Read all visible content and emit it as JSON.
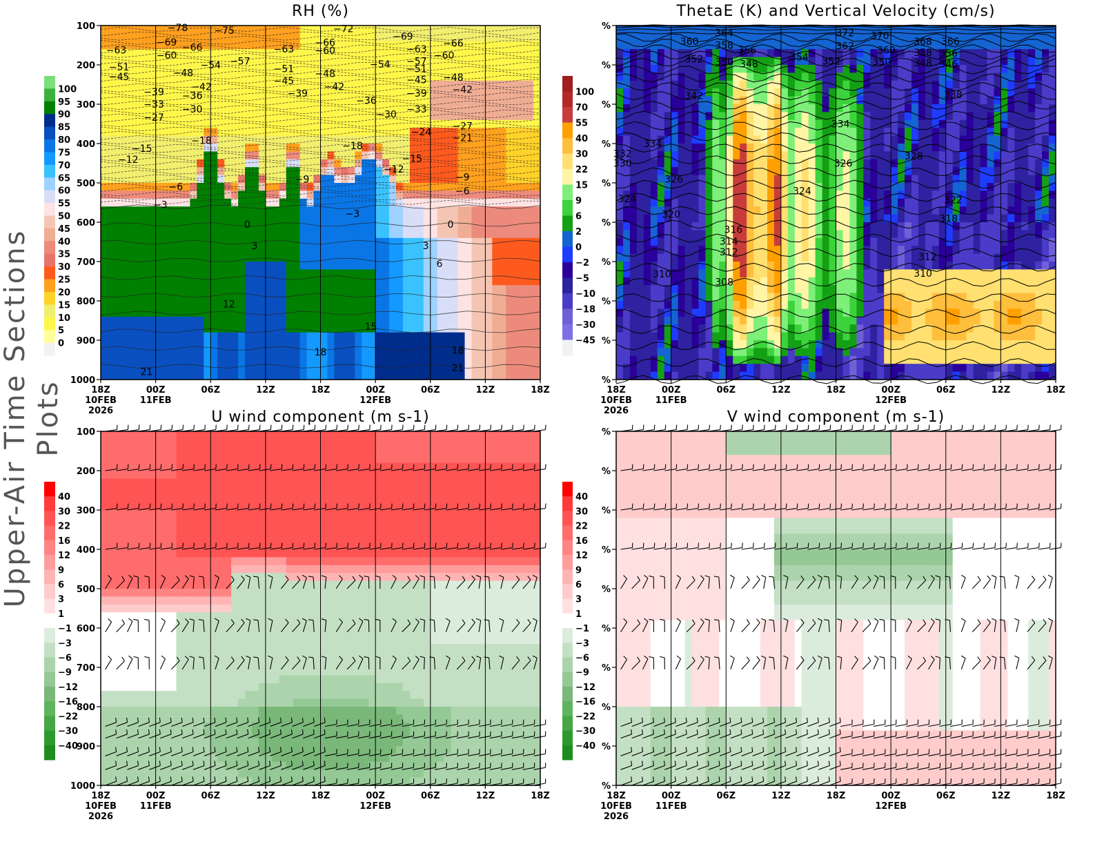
{
  "page_title": "Upper-Air Time Sections Plots",
  "chart_data": [
    {
      "type": "heatmap",
      "title": "RH (%)",
      "xticks": [
        "18Z",
        "00Z",
        "06Z",
        "12Z",
        "18Z",
        "00Z",
        "06Z",
        "12Z",
        "18Z"
      ],
      "xdates": {
        "0": [
          "10FEB",
          "2026"
        ],
        "1": [
          "11FEB"
        ],
        "5": [
          "12FEB"
        ]
      },
      "xrange_hours": [
        0,
        48
      ],
      "yticks": [
        "100",
        "200",
        "300",
        "400",
        "500",
        "600",
        "700",
        "800",
        "900",
        "1000"
      ],
      "ylim": [
        100,
        1000
      ],
      "colorbar": {
        "levels": [
          0,
          5,
          10,
          15,
          20,
          25,
          30,
          35,
          40,
          45,
          50,
          55,
          60,
          65,
          70,
          75,
          80,
          85,
          90,
          95,
          100
        ],
        "colors": [
          "#f2f2f2",
          "#ffff99",
          "#fff64a",
          "#f2ee6e",
          "#ffd22a",
          "#ffa01e",
          "#ff5a1e",
          "#e8736a",
          "#ec8b7d",
          "#efad94",
          "#f5c5b3",
          "#fde3e4",
          "#d9def8",
          "#9ed3ff",
          "#3ac2ff",
          "#1499ff",
          "#0a76e6",
          "#0a4fbf",
          "#002c8c",
          "#008000",
          "#3cb03c",
          "#7ae07a"
        ]
      },
      "contour_labels": [
        {
          "v": "-78",
          "t": 8.4,
          "p": 105
        },
        {
          "v": "-75",
          "t": 13.5,
          "p": 112
        },
        {
          "v": "-72",
          "t": 26.5,
          "p": 108
        },
        {
          "v": "-69",
          "t": 33,
          "p": 127
        },
        {
          "v": "-66",
          "t": 38.5,
          "p": 145
        },
        {
          "v": "-63",
          "t": 1.7,
          "p": 162
        },
        {
          "v": "-69",
          "t": 7.2,
          "p": 142
        },
        {
          "v": "-66",
          "t": 10,
          "p": 155
        },
        {
          "v": "-60",
          "t": 7.2,
          "p": 175
        },
        {
          "v": "-63",
          "t": 20,
          "p": 160
        },
        {
          "v": "-66",
          "t": 24.5,
          "p": 143
        },
        {
          "v": "-60",
          "t": 24.5,
          "p": 163
        },
        {
          "v": "-63",
          "t": 34.5,
          "p": 160
        },
        {
          "v": "-60",
          "t": 37.5,
          "p": 175
        },
        {
          "v": "-57",
          "t": 15.2,
          "p": 190
        },
        {
          "v": "-54",
          "t": 12,
          "p": 200
        },
        {
          "v": "-54",
          "t": 30.5,
          "p": 198
        },
        {
          "v": "-57",
          "t": 34.5,
          "p": 190
        },
        {
          "v": "-51",
          "t": 2,
          "p": 205
        },
        {
          "v": "-45",
          "t": 2,
          "p": 230
        },
        {
          "v": "-48",
          "t": 9,
          "p": 220
        },
        {
          "v": "-51",
          "t": 20,
          "p": 210
        },
        {
          "v": "-48",
          "t": 24.5,
          "p": 222
        },
        {
          "v": "-51",
          "t": 34.5,
          "p": 210
        },
        {
          "v": "-48",
          "t": 38.5,
          "p": 232
        },
        {
          "v": "-45",
          "t": 20,
          "p": 240
        },
        {
          "v": "-42",
          "t": 11,
          "p": 255
        },
        {
          "v": "-42",
          "t": 25.5,
          "p": 255
        },
        {
          "v": "-45",
          "t": 34.5,
          "p": 238
        },
        {
          "v": "-42",
          "t": 39.5,
          "p": 262
        },
        {
          "v": "-39",
          "t": 5.8,
          "p": 268
        },
        {
          "v": "-36",
          "t": 10,
          "p": 278
        },
        {
          "v": "-39",
          "t": 21.5,
          "p": 272
        },
        {
          "v": "-36",
          "t": 29,
          "p": 290
        },
        {
          "v": "-39",
          "t": 34.5,
          "p": 272
        },
        {
          "v": "-33",
          "t": 5.8,
          "p": 300
        },
        {
          "v": "-30",
          "t": 10,
          "p": 312
        },
        {
          "v": "-30",
          "t": 31.2,
          "p": 325
        },
        {
          "v": "-33",
          "t": 34.5,
          "p": 312
        },
        {
          "v": "-27",
          "t": 5.8,
          "p": 333
        },
        {
          "v": "-24",
          "t": 35,
          "p": 370
        },
        {
          "v": "-27",
          "t": 39.5,
          "p": 355
        },
        {
          "v": "-21",
          "t": 39.5,
          "p": 385
        },
        {
          "v": "-18",
          "t": 11,
          "p": 392
        },
        {
          "v": "-18",
          "t": 27.5,
          "p": 405
        },
        {
          "v": "-15",
          "t": 4.5,
          "p": 412
        },
        {
          "v": "-12",
          "t": 3,
          "p": 440
        },
        {
          "v": "-15",
          "t": 34,
          "p": 438
        },
        {
          "v": "-12",
          "t": 32,
          "p": 465
        },
        {
          "v": "-9",
          "t": 22,
          "p": 490
        },
        {
          "v": "-9",
          "t": 39.5,
          "p": 485
        },
        {
          "v": "-6",
          "t": 8.2,
          "p": 510
        },
        {
          "v": "-6",
          "t": 39.5,
          "p": 520
        },
        {
          "v": "-3",
          "t": 6.5,
          "p": 555
        },
        {
          "v": "-3",
          "t": 27.5,
          "p": 578
        },
        {
          "v": "0",
          "t": 16,
          "p": 605
        },
        {
          "v": "0",
          "t": 38.2,
          "p": 605
        },
        {
          "v": "3",
          "t": 16.8,
          "p": 660
        },
        {
          "v": "3",
          "t": 35.5,
          "p": 660
        },
        {
          "v": "6",
          "t": 37,
          "p": 705
        },
        {
          "v": "12",
          "t": 14,
          "p": 808
        },
        {
          "v": "15",
          "t": 29.5,
          "p": 865
        },
        {
          "v": "18",
          "t": 24,
          "p": 930
        },
        {
          "v": "18",
          "t": 39,
          "p": 925
        },
        {
          "v": "21",
          "t": 5,
          "p": 980
        },
        {
          "v": "21",
          "t": 39,
          "p": 970
        }
      ]
    },
    {
      "type": "heatmap",
      "title": "ThetaE (K) and Vertical Velocity (cm/s)",
      "xticks": [
        "18Z",
        "00Z",
        "06Z",
        "12Z",
        "18Z",
        "00Z",
        "06Z",
        "12Z",
        "18Z"
      ],
      "xdates": {
        "0": [
          "10FEB",
          "2026"
        ],
        "1": [
          "11FEB"
        ],
        "5": [
          "12FEB"
        ]
      },
      "xrange_hours": [
        0,
        48
      ],
      "yticks": [
        "%",
        "%",
        "%",
        "%",
        "%",
        "%",
        "%",
        "%",
        "%",
        "%"
      ],
      "ylim": [
        100,
        1000
      ],
      "colorbar": {
        "levels": [
          -45,
          -30,
          -18,
          -10,
          -5,
          -2,
          0,
          2,
          6,
          9,
          15,
          22,
          30,
          40,
          55,
          70,
          100
        ],
        "colors": [
          "#f2f2f2",
          "#7e70e6",
          "#7060d8",
          "#4a3cc8",
          "#2e22a0",
          "#2a009a",
          "#1e3cff",
          "#1464d2",
          "#14a014",
          "#3cd23c",
          "#7ef07a",
          "#fff5a5",
          "#ffe070",
          "#ffbe3c",
          "#ffa000",
          "#c83c3c",
          "#b42828",
          "#a01e1e"
        ]
      },
      "contour_labels": [
        {
          "v": "360",
          "t": 8,
          "p": 140
        },
        {
          "v": "364",
          "t": 11.8,
          "p": 118
        },
        {
          "v": "358",
          "t": 11.8,
          "p": 150
        },
        {
          "v": "356",
          "t": 14.3,
          "p": 162
        },
        {
          "v": "352",
          "t": 8.5,
          "p": 185
        },
        {
          "v": "350",
          "t": 11.8,
          "p": 192
        },
        {
          "v": "348",
          "t": 14.5,
          "p": 197
        },
        {
          "v": "354",
          "t": 20,
          "p": 180
        },
        {
          "v": "352",
          "t": 23.5,
          "p": 190
        },
        {
          "v": "372",
          "t": 25,
          "p": 118
        },
        {
          "v": "370",
          "t": 28.8,
          "p": 125
        },
        {
          "v": "362",
          "t": 25,
          "p": 152
        },
        {
          "v": "360",
          "t": 29.5,
          "p": 162
        },
        {
          "v": "350",
          "t": 29,
          "p": 192
        },
        {
          "v": "368",
          "t": 33.5,
          "p": 140
        },
        {
          "v": "366",
          "t": 36.5,
          "p": 140
        },
        {
          "v": "358",
          "t": 33.5,
          "p": 168
        },
        {
          "v": "356",
          "t": 36.3,
          "p": 170
        },
        {
          "v": "348",
          "t": 33.5,
          "p": 195
        },
        {
          "v": "346",
          "t": 36.3,
          "p": 197
        },
        {
          "v": "342",
          "t": 8.5,
          "p": 278
        },
        {
          "v": "338",
          "t": 36.8,
          "p": 275
        },
        {
          "v": "334",
          "t": 24.5,
          "p": 350
        },
        {
          "v": "334",
          "t": 4,
          "p": 400
        },
        {
          "v": "332",
          "t": 0.7,
          "p": 425
        },
        {
          "v": "330",
          "t": 0.7,
          "p": 450
        },
        {
          "v": "328",
          "t": 32.5,
          "p": 432
        },
        {
          "v": "326",
          "t": 6.3,
          "p": 490
        },
        {
          "v": "326",
          "t": 24.8,
          "p": 450
        },
        {
          "v": "324",
          "t": 20.3,
          "p": 520
        },
        {
          "v": "324",
          "t": 1.2,
          "p": 540
        },
        {
          "v": "322",
          "t": 36.8,
          "p": 543
        },
        {
          "v": "320",
          "t": 6,
          "p": 580
        },
        {
          "v": "318",
          "t": 36.3,
          "p": 590
        },
        {
          "v": "316",
          "t": 12.8,
          "p": 618
        },
        {
          "v": "314",
          "t": 12.3,
          "p": 648
        },
        {
          "v": "312",
          "t": 12.3,
          "p": 675
        },
        {
          "v": "312",
          "t": 34,
          "p": 688
        },
        {
          "v": "310",
          "t": 5,
          "p": 732
        },
        {
          "v": "310",
          "t": 33.5,
          "p": 730
        },
        {
          "v": "308",
          "t": 11.8,
          "p": 752
        }
      ]
    },
    {
      "type": "heatmap",
      "title": "U wind component (m s-1)",
      "xticks": [
        "18Z",
        "00Z",
        "06Z",
        "12Z",
        "18Z",
        "00Z",
        "06Z",
        "12Z",
        "18Z"
      ],
      "xdates": {
        "0": [
          "10FEB",
          "2026"
        ],
        "1": [
          "11FEB"
        ],
        "5": [
          "12FEB"
        ]
      },
      "xrange_hours": [
        0,
        48
      ],
      "yticks": [
        "100",
        "200",
        "300",
        "400",
        "500",
        "600",
        "700",
        "800",
        "900",
        "1000"
      ],
      "ylim": [
        100,
        1000
      ],
      "colorbar": {
        "levels": [
          -40,
          -30,
          -22,
          -16,
          -12,
          -9,
          -6,
          -3,
          -1,
          1,
          3,
          6,
          9,
          12,
          16,
          22,
          30,
          40
        ],
        "colors": [
          "#1e8c1e",
          "#2e9a2e",
          "#46a646",
          "#5fb45f",
          "#7ab87a",
          "#94c894",
          "#acd4ac",
          "#c4e0c4",
          "#dcecdc",
          "#ffffff",
          "#ffe0e0",
          "#ffcccc",
          "#ffb4b4",
          "#ff9c9c",
          "#ff8484",
          "#ff6c6c",
          "#ff5454",
          "#ff3a3a",
          "#ff0000"
        ]
      },
      "contour_labels": []
    },
    {
      "type": "heatmap",
      "title": "V wind component (m s-1)",
      "xticks": [
        "18Z",
        "00Z",
        "06Z",
        "12Z",
        "18Z",
        "00Z",
        "06Z",
        "12Z",
        "18Z"
      ],
      "xdates": {
        "0": [
          "10FEB",
          "2026"
        ],
        "1": [
          "11FEB"
        ],
        "5": [
          "12FEB"
        ]
      },
      "xrange_hours": [
        0,
        48
      ],
      "yticks": [
        "%",
        "%",
        "%",
        "%",
        "%",
        "%",
        "%",
        "%",
        "%",
        "%"
      ],
      "ylim": [
        100,
        1000
      ],
      "colorbar": {
        "levels": [
          -40,
          -30,
          -22,
          -16,
          -12,
          -9,
          -6,
          -3,
          -1,
          1,
          3,
          6,
          9,
          12,
          16,
          22,
          30,
          40
        ],
        "colors": [
          "#1e8c1e",
          "#2e9a2e",
          "#46a646",
          "#5fb45f",
          "#7ab87a",
          "#94c894",
          "#acd4ac",
          "#c4e0c4",
          "#dcecdc",
          "#ffffff",
          "#ffe0e0",
          "#ffcccc",
          "#ffb4b4",
          "#ff9c9c",
          "#ff8484",
          "#ff6c6c",
          "#ff5454",
          "#ff3a3a",
          "#ff0000"
        ]
      },
      "contour_labels": []
    }
  ]
}
